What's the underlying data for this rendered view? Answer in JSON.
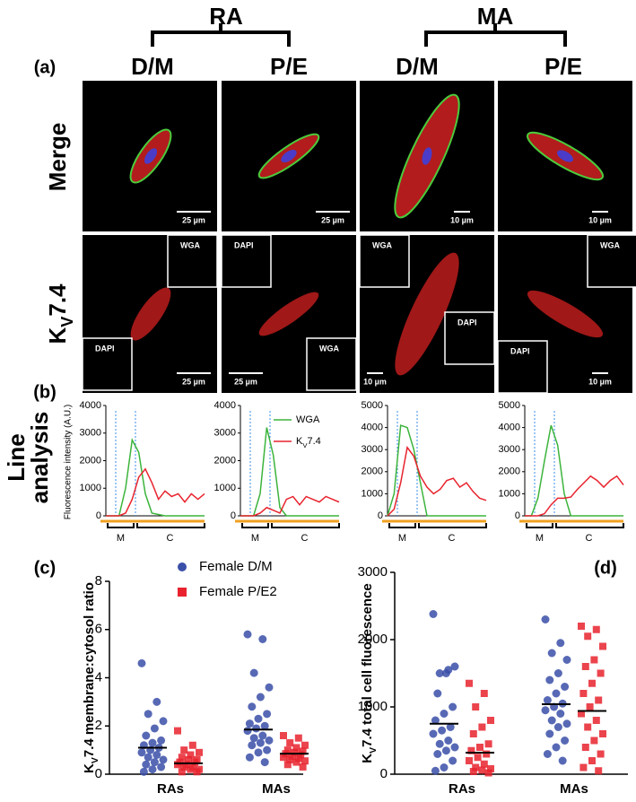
{
  "figure": {
    "panel_a": "(a)",
    "panel_b": "(b)",
    "panel_c": "(c)",
    "panel_d": "(d)",
    "groups": [
      "RA",
      "MA"
    ],
    "columns": [
      "D/M",
      "P/E",
      "D/M",
      "P/E"
    ],
    "rows": [
      "Merge",
      {
        "main": "K",
        "sub": "V",
        "rest": "7.4"
      }
    ],
    "line_analysis": [
      "Line",
      "analysis"
    ],
    "intensity_label": "Fluorescence intensity (A.U.)",
    "scale_bars": [
      [
        "25 µm",
        "25 µm",
        "10 µm",
        "10 µm"
      ],
      [
        "25 µm",
        "25 µm",
        "10 µm",
        "10 µm"
      ]
    ],
    "insets": [
      [
        "WGA",
        "DAPI"
      ],
      [
        "DAPI",
        "WGA"
      ],
      [
        "WGA",
        "DAPI"
      ],
      [
        "WGA",
        "DAPI"
      ]
    ]
  },
  "chart_data": [
    {
      "type": "line",
      "categories": [
        null,
        null,
        null,
        null,
        null,
        null,
        null,
        null,
        null,
        null,
        null,
        null,
        null,
        null,
        null,
        null
      ],
      "ylim": [
        0,
        4000
      ],
      "yticks": [
        0,
        1000,
        2000,
        3000,
        4000
      ],
      "annotations": [
        "M",
        "C"
      ],
      "series": [
        {
          "name": "WGA",
          "color": "#3cb43c",
          "values": [
            0,
            0,
            0,
            1000,
            2750,
            2300,
            800,
            100,
            50,
            0,
            0,
            0,
            0,
            0,
            0,
            0
          ]
        },
        {
          "name": {
            "main": "K",
            "sub": "V",
            "rest": "7.4"
          },
          "color": "#e8232e",
          "values": [
            0,
            0,
            0,
            100,
            600,
            1400,
            1700,
            1200,
            600,
            900,
            700,
            800,
            500,
            800,
            600,
            800
          ]
        }
      ]
    },
    {
      "type": "line",
      "categories": [
        null,
        null,
        null,
        null,
        null,
        null,
        null,
        null,
        null,
        null,
        null,
        null,
        null,
        null,
        null,
        null
      ],
      "ylim": [
        0,
        4000
      ],
      "yticks": [
        0,
        1000,
        2000,
        3000,
        4000
      ],
      "annotations": [
        "M",
        "C"
      ],
      "legend": true,
      "series": [
        {
          "name": "WGA",
          "color": "#3cb43c",
          "values": [
            0,
            0,
            0,
            800,
            3200,
            2200,
            300,
            0,
            0,
            0,
            0,
            0,
            0,
            0,
            0,
            0
          ]
        },
        {
          "name": {
            "main": "K",
            "sub": "V",
            "rest": "7.4"
          },
          "color": "#e8232e",
          "values": [
            0,
            0,
            0,
            100,
            300,
            200,
            100,
            600,
            700,
            400,
            700,
            600,
            500,
            700,
            600,
            500
          ]
        }
      ]
    },
    {
      "type": "line",
      "categories": [
        null,
        null,
        null,
        null,
        null,
        null,
        null,
        null,
        null,
        null,
        null,
        null,
        null,
        null,
        null,
        null
      ],
      "ylim": [
        0,
        5000
      ],
      "yticks": [
        0,
        1000,
        2000,
        3000,
        4000,
        5000
      ],
      "annotations": [
        "M",
        "C"
      ],
      "series": [
        {
          "name": "WGA",
          "color": "#3cb43c",
          "values": [
            0,
            1000,
            4100,
            4000,
            3000,
            1500,
            0,
            0,
            0,
            0,
            0,
            0,
            0,
            0,
            0,
            0
          ]
        },
        {
          "name": {
            "main": "K",
            "sub": "V",
            "rest": "7.4"
          },
          "color": "#e8232e",
          "values": [
            0,
            300,
            1500,
            3100,
            2700,
            1800,
            1300,
            1000,
            1200,
            1600,
            1700,
            1300,
            1500,
            1100,
            800,
            700
          ]
        }
      ]
    },
    {
      "type": "line",
      "categories": [
        null,
        null,
        null,
        null,
        null,
        null,
        null,
        null,
        null,
        null,
        null,
        null,
        null,
        null,
        null,
        null
      ],
      "ylim": [
        0,
        5000
      ],
      "yticks": [
        0,
        1000,
        2000,
        3000,
        4000,
        5000
      ],
      "annotations": [
        "M",
        "C"
      ],
      "series": [
        {
          "name": "WGA",
          "color": "#3cb43c",
          "values": [
            0,
            0,
            800,
            2500,
            4100,
            3200,
            1000,
            0,
            0,
            0,
            0,
            0,
            0,
            0,
            0,
            0
          ]
        },
        {
          "name": {
            "main": "K",
            "sub": "V",
            "rest": "7.4"
          },
          "color": "#e8232e",
          "values": [
            0,
            0,
            0,
            100,
            500,
            800,
            800,
            850,
            1200,
            1500,
            1800,
            1600,
            1300,
            1600,
            1800,
            1400
          ]
        }
      ]
    },
    {
      "type": "strip",
      "categories": [
        "RAs",
        "MAs"
      ],
      "ylabel": {
        "main": "K",
        "sub": "V",
        "rest": "7.4 membrane:cytosol ratio"
      },
      "ylim": [
        0,
        8
      ],
      "yticks": [
        0,
        2,
        4,
        6,
        8
      ],
      "legend": true,
      "series": [
        {
          "name": "Female D/M",
          "color": "#3a4fa8",
          "marker": "circle",
          "values": [
            [
              4.6,
              3.0,
              2.5,
              2.2,
              1.9,
              1.6,
              1.4,
              1.3,
              1.2,
              1.1,
              1.0,
              0.9,
              0.8,
              0.7,
              0.6,
              0.5,
              0.4,
              0.3,
              0.2,
              0.1
            ],
            [
              5.8,
              5.6,
              4.2,
              3.6,
              3.2,
              2.8,
              2.5,
              2.3,
              2.1,
              2.0,
              1.9,
              1.8,
              1.6,
              1.5,
              1.4,
              1.3,
              1.2,
              1.0,
              0.9,
              0.7,
              0.5
            ]
          ],
          "means": [
            1.1,
            1.85
          ]
        },
        {
          "name": "Female P/E2",
          "color": "#e8232e",
          "marker": "square",
          "values": [
            [
              1.8,
              1.2,
              1.0,
              0.9,
              0.8,
              0.7,
              0.6,
              0.6,
              0.5,
              0.5,
              0.4,
              0.4,
              0.3,
              0.3,
              0.2,
              0.2,
              0.1,
              0.1
            ],
            [
              1.6,
              1.5,
              1.3,
              1.2,
              1.1,
              1.0,
              0.95,
              0.9,
              0.85,
              0.8,
              0.75,
              0.7,
              0.65,
              0.6,
              0.55,
              0.5,
              0.4,
              0.3
            ]
          ],
          "means": [
            0.45,
            0.85
          ]
        }
      ]
    },
    {
      "type": "strip",
      "categories": [
        "RAs",
        "MAs"
      ],
      "ylabel": {
        "main": "K",
        "sub": "V",
        "rest": "7.4 total cell fluorescence"
      },
      "ylim": [
        0,
        3000
      ],
      "yticks": [
        0,
        1000,
        2000,
        3000
      ],
      "series": [
        {
          "name": "Female D/M",
          "color": "#3a4fa8",
          "marker": "circle",
          "values": [
            [
              2380,
              1550,
              1500,
              1600,
              1500,
              1200,
              1000,
              900,
              800,
              700,
              650,
              600,
              500,
              450,
              400,
              350,
              300,
              200,
              100,
              50
            ],
            [
              2300,
              1950,
              1800,
              1700,
              1500,
              1400,
              1300,
              1200,
              1100,
              1050,
              1000,
              950,
              900,
              800,
              750,
              700,
              600,
              500,
              400,
              300,
              200
            ]
          ],
          "means": [
            750,
            1040
          ]
        },
        {
          "name": "Female P/E2",
          "color": "#e8232e",
          "marker": "square",
          "values": [
            [
              1350,
              1200,
              1000,
              800,
              700,
              600,
              450,
              400,
              350,
              300,
              250,
              200,
              150,
              100,
              80,
              60,
              40,
              20
            ],
            [
              2200,
              2150,
              2050,
              1900,
              1700,
              1600,
              1500,
              1350,
              1200,
              1100,
              1000,
              900,
              800,
              700,
              600,
              500,
              400,
              300,
              200,
              100,
              50
            ]
          ],
          "means": [
            320,
            940
          ]
        }
      ]
    }
  ]
}
